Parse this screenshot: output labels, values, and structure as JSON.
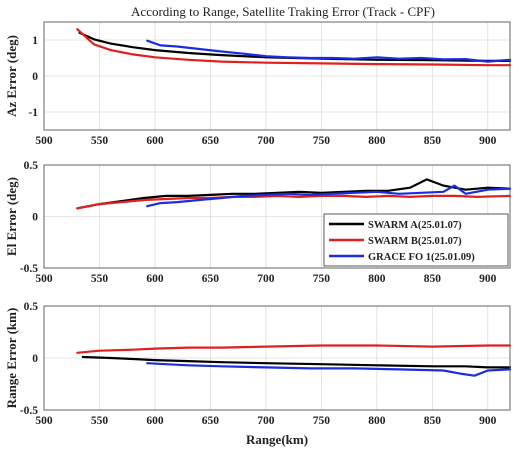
{
  "chart_data": [
    {
      "type": "line",
      "title": "According to Range, Satellite Traking Error (Track - CPF)",
      "xlabel": "",
      "ylabel": "Az Error (deg)",
      "xlim": [
        500,
        920
      ],
      "ylim": [
        -1.5,
        1.5
      ],
      "xticks": [
        "500",
        "550",
        "600",
        "650",
        "700",
        "750",
        "800",
        "850",
        "900"
      ],
      "yticks": [
        "1",
        "0",
        "-1"
      ],
      "grid": true,
      "series": [
        {
          "color": "#000000",
          "x": [
            532,
            545,
            560,
            580,
            600,
            630,
            660,
            700,
            750,
            800,
            850,
            900,
            920
          ],
          "y": [
            1.2,
            1.02,
            0.9,
            0.8,
            0.72,
            0.64,
            0.58,
            0.52,
            0.48,
            0.45,
            0.44,
            0.42,
            0.42
          ]
        },
        {
          "color": "#e02020",
          "x": [
            530,
            545,
            560,
            580,
            600,
            630,
            660,
            700,
            750,
            800,
            850,
            900,
            920
          ],
          "y": [
            1.3,
            0.88,
            0.72,
            0.6,
            0.52,
            0.45,
            0.4,
            0.37,
            0.35,
            0.33,
            0.32,
            0.3,
            0.3
          ]
        },
        {
          "color": "#1a2ee0",
          "x": [
            593,
            605,
            620,
            640,
            660,
            680,
            700,
            720,
            740,
            760,
            780,
            800,
            820,
            840,
            860,
            880,
            900,
            920
          ],
          "y": [
            0.98,
            0.85,
            0.82,
            0.75,
            0.68,
            0.62,
            0.55,
            0.52,
            0.5,
            0.5,
            0.48,
            0.52,
            0.48,
            0.5,
            0.46,
            0.47,
            0.4,
            0.45
          ]
        }
      ]
    },
    {
      "type": "line",
      "title": "",
      "xlabel": "",
      "ylabel": "El Error (deg)",
      "xlim": [
        500,
        920
      ],
      "ylim": [
        -0.5,
        0.5
      ],
      "xticks": [
        "500",
        "550",
        "600",
        "650",
        "700",
        "750",
        "800",
        "850",
        "900"
      ],
      "yticks": [
        "0.5",
        "0",
        "-0.5"
      ],
      "grid": true,
      "legend": {
        "placement": "lower-right",
        "entries": [
          {
            "label": "SWARM A(25.01.07)",
            "color": "#000000"
          },
          {
            "label": "SWARM B(25.01.07)",
            "color": "#e02020"
          },
          {
            "label": "GRACE FO 1(25.01.09)",
            "color": "#1a2ee0"
          }
        ]
      },
      "series": [
        {
          "color": "#000000",
          "x": [
            530,
            550,
            570,
            590,
            610,
            630,
            650,
            670,
            690,
            710,
            730,
            750,
            770,
            790,
            810,
            830,
            845,
            860,
            880,
            900,
            920
          ],
          "y": [
            0.08,
            0.12,
            0.15,
            0.18,
            0.2,
            0.2,
            0.21,
            0.22,
            0.22,
            0.23,
            0.24,
            0.23,
            0.24,
            0.25,
            0.25,
            0.28,
            0.36,
            0.3,
            0.26,
            0.28,
            0.27
          ]
        },
        {
          "color": "#e02020",
          "x": [
            530,
            550,
            570,
            590,
            610,
            630,
            650,
            670,
            690,
            710,
            730,
            750,
            770,
            790,
            810,
            830,
            850,
            870,
            890,
            920
          ],
          "y": [
            0.08,
            0.12,
            0.14,
            0.16,
            0.17,
            0.18,
            0.18,
            0.19,
            0.19,
            0.2,
            0.19,
            0.2,
            0.2,
            0.19,
            0.2,
            0.19,
            0.2,
            0.2,
            0.19,
            0.2
          ]
        },
        {
          "color": "#1a2ee0",
          "x": [
            593,
            605,
            620,
            640,
            660,
            680,
            700,
            720,
            740,
            760,
            780,
            800,
            820,
            840,
            860,
            870,
            880,
            900,
            920
          ],
          "y": [
            0.1,
            0.13,
            0.14,
            0.16,
            0.18,
            0.2,
            0.21,
            0.22,
            0.21,
            0.22,
            0.23,
            0.24,
            0.22,
            0.23,
            0.24,
            0.3,
            0.22,
            0.26,
            0.27
          ]
        }
      ]
    },
    {
      "type": "line",
      "title": "",
      "xlabel": "Range(km)",
      "ylabel": "Range Error (km)",
      "xlim": [
        500,
        920
      ],
      "ylim": [
        -0.5,
        0.5
      ],
      "xticks": [
        "500",
        "550",
        "600",
        "650",
        "700",
        "750",
        "800",
        "850",
        "900"
      ],
      "yticks": [
        "0.5",
        "0",
        "-0.5"
      ],
      "grid": true,
      "series": [
        {
          "color": "#000000",
          "x": [
            535,
            560,
            580,
            600,
            630,
            660,
            700,
            750,
            800,
            850,
            880,
            900,
            920
          ],
          "y": [
            0.01,
            0.0,
            -0.01,
            -0.02,
            -0.03,
            -0.04,
            -0.05,
            -0.06,
            -0.07,
            -0.08,
            -0.08,
            -0.09,
            -0.09
          ]
        },
        {
          "color": "#e02020",
          "x": [
            530,
            550,
            580,
            600,
            630,
            660,
            700,
            750,
            800,
            850,
            900,
            920
          ],
          "y": [
            0.05,
            0.07,
            0.08,
            0.09,
            0.1,
            0.1,
            0.11,
            0.12,
            0.12,
            0.11,
            0.12,
            0.12
          ]
        },
        {
          "color": "#1a2ee0",
          "x": [
            593,
            610,
            630,
            660,
            700,
            740,
            780,
            820,
            860,
            875,
            888,
            900,
            920
          ],
          "y": [
            -0.05,
            -0.06,
            -0.07,
            -0.08,
            -0.09,
            -0.1,
            -0.1,
            -0.11,
            -0.12,
            -0.15,
            -0.17,
            -0.12,
            -0.11
          ]
        }
      ]
    }
  ]
}
